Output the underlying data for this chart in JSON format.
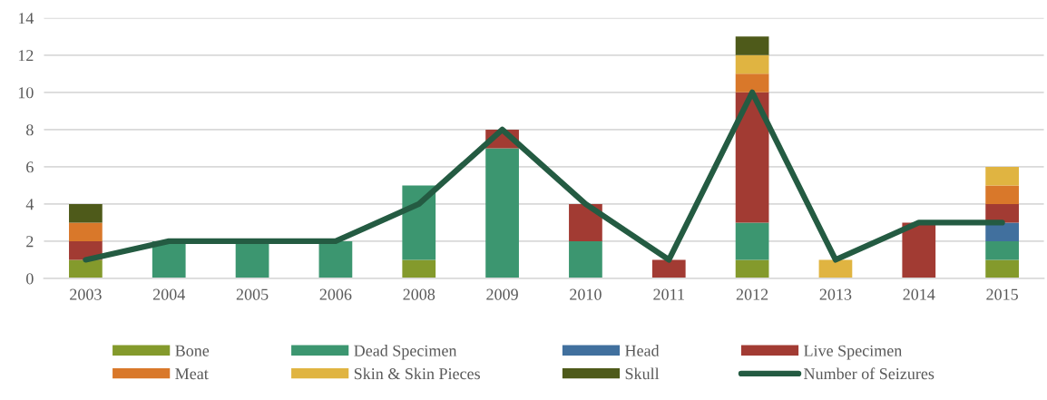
{
  "chart_data": {
    "type": "bar",
    "stacked": true,
    "categories": [
      "2003",
      "2004",
      "2005",
      "2006",
      "2008",
      "2009",
      "2010",
      "2011",
      "2012",
      "2013",
      "2014",
      "2015"
    ],
    "series": [
      {
        "name": "Bone",
        "color": "#849a2c",
        "values": [
          1,
          0,
          0,
          0,
          1,
          0,
          0,
          0,
          1,
          0,
          0,
          1
        ]
      },
      {
        "name": "Dead Specimen",
        "color": "#3c9670",
        "values": [
          0,
          2,
          2,
          2,
          4,
          7,
          2,
          0,
          2,
          0,
          0,
          1
        ]
      },
      {
        "name": "Head",
        "color": "#41709e",
        "values": [
          0,
          0,
          0,
          0,
          0,
          0,
          0,
          0,
          0,
          0,
          0,
          1
        ]
      },
      {
        "name": "Live Specimen",
        "color": "#a23b33",
        "values": [
          1,
          0,
          0,
          0,
          0,
          1,
          2,
          1,
          7,
          0,
          3,
          1
        ]
      },
      {
        "name": "Meat",
        "color": "#d9782a",
        "values": [
          1,
          0,
          0,
          0,
          0,
          0,
          0,
          0,
          1,
          0,
          0,
          1
        ]
      },
      {
        "name": "Skin & Skin Pieces",
        "color": "#e0b441",
        "values": [
          0,
          0,
          0,
          0,
          0,
          0,
          0,
          0,
          1,
          1,
          0,
          1
        ]
      },
      {
        "name": "Skull",
        "color": "#4e5a1a",
        "values": [
          1,
          0,
          0,
          0,
          0,
          0,
          0,
          0,
          1,
          0,
          0,
          0
        ]
      },
      {
        "name": "Number of Seizures",
        "type": "line",
        "color": "#245b42",
        "values": [
          1,
          2,
          2,
          2,
          4,
          8,
          4,
          1,
          10,
          1,
          3,
          3
        ]
      }
    ],
    "ylim": [
      0,
      14
    ],
    "yticks": [
      0,
      2,
      4,
      6,
      8,
      10,
      12,
      14
    ],
    "grid": "y",
    "legend": "bottom"
  }
}
